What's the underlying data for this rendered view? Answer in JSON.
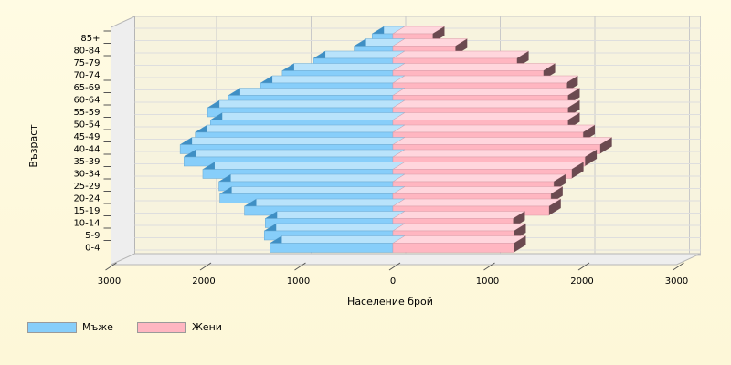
{
  "chart_data": {
    "type": "bar",
    "orientation": "horizontal",
    "stacked_pyramid": true,
    "categories": [
      "0-4",
      "5-9",
      "10-14",
      "15-19",
      "20-24",
      "25-29",
      "30-34",
      "35-39",
      "40-44",
      "45-49",
      "50-54",
      "55-59",
      "60-64",
      "65-69",
      "70-74",
      "75-79",
      "80-84",
      "85+"
    ],
    "series": [
      {
        "name": "Мъже",
        "color": "#87cefa",
        "side": "left",
        "values": [
          1300,
          1360,
          1350,
          1570,
          1830,
          1840,
          2010,
          2210,
          2250,
          2090,
          1930,
          1960,
          1740,
          1400,
          1170,
          840,
          410,
          220
        ]
      },
      {
        "name": "Жени",
        "color": "#ffb6c1",
        "side": "right",
        "values": [
          1280,
          1280,
          1270,
          1650,
          1670,
          1700,
          1890,
          2030,
          2190,
          2010,
          1850,
          1850,
          1850,
          1830,
          1590,
          1310,
          660,
          420
        ]
      }
    ],
    "xticks": [
      "3000",
      "2000",
      "1000",
      "0",
      "1000",
      "2000",
      "3000"
    ],
    "xlim": [
      -3000,
      3000
    ],
    "xlabel": "Население брой",
    "ylabel": "Възраст",
    "grid": true,
    "legend": "bottom-left"
  }
}
